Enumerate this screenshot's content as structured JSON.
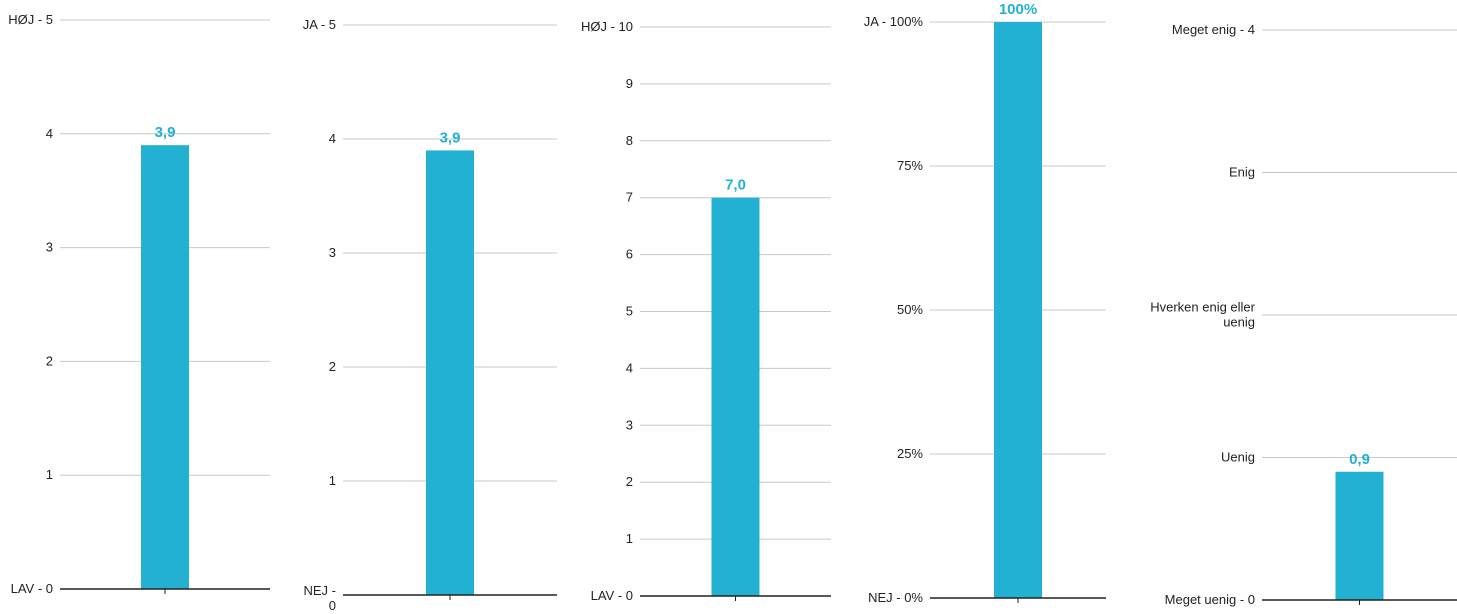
{
  "colors": {
    "bar": "#22b0d3",
    "value_label": "#22b0d3",
    "grid": "#c8c8c8",
    "axis": "#222222",
    "tick_label": "#222222"
  },
  "chart_data": [
    {
      "type": "bar",
      "categories": [
        ""
      ],
      "values": [
        3.9
      ],
      "value_labels": [
        "3,9"
      ],
      "ylim": [
        0,
        5
      ],
      "yticks": [
        0,
        1,
        2,
        3,
        4,
        5
      ],
      "ytick_labels": [
        "LAV - 0",
        "1",
        "2",
        "3",
        "4",
        "HØJ - 5"
      ],
      "grid": true
    },
    {
      "type": "bar",
      "categories": [
        ""
      ],
      "values": [
        3.9
      ],
      "value_labels": [
        "3,9"
      ],
      "ylim": [
        0,
        5
      ],
      "yticks": [
        0,
        1,
        2,
        3,
        4,
        5
      ],
      "ytick_labels": [
        "NEJ - 0",
        "1",
        "2",
        "3",
        "4",
        "JA - 5"
      ],
      "grid": true
    },
    {
      "type": "bar",
      "categories": [
        ""
      ],
      "values": [
        7.0
      ],
      "value_labels": [
        "7,0"
      ],
      "ylim": [
        0,
        10
      ],
      "yticks": [
        0,
        1,
        2,
        3,
        4,
        5,
        6,
        7,
        8,
        9,
        10
      ],
      "ytick_labels": [
        "LAV - 0",
        "1",
        "2",
        "3",
        "4",
        "5",
        "6",
        "7",
        "8",
        "9",
        "HØJ - 10"
      ],
      "grid": true
    },
    {
      "type": "bar",
      "categories": [
        ""
      ],
      "values": [
        100
      ],
      "value_labels": [
        "100%"
      ],
      "ylim": [
        0,
        100
      ],
      "yticks": [
        0,
        25,
        50,
        75,
        100
      ],
      "ytick_labels": [
        "NEJ - 0%",
        "25%",
        "50%",
        "75%",
        "JA - 100%"
      ],
      "grid": true
    },
    {
      "type": "bar",
      "categories": [
        ""
      ],
      "values": [
        0.9
      ],
      "value_labels": [
        "0,9"
      ],
      "ylim": [
        0,
        4
      ],
      "yticks": [
        0,
        1,
        2,
        3,
        4
      ],
      "ytick_labels": [
        "Meget uenig - 0",
        "Uenig",
        "Hverken enig eller uenig",
        "Enig",
        "Meget enig - 4"
      ],
      "grid": true
    }
  ]
}
